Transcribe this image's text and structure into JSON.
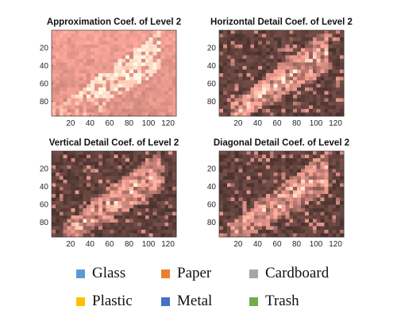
{
  "chart_data": [
    {
      "type": "heatmap",
      "title": "Approximation Coef. of Level 2",
      "xticks": [
        20,
        40,
        60,
        80,
        100,
        120
      ],
      "yticks": [
        20,
        40,
        60,
        80
      ],
      "xlim": [
        0.5,
        128.5
      ],
      "ylim": [
        0.5,
        96.5
      ],
      "colormap": "pink",
      "content": "approximation"
    },
    {
      "type": "heatmap",
      "title": "Horizontal Detail Coef. of Level 2",
      "xticks": [
        20,
        40,
        60,
        80,
        100,
        120
      ],
      "yticks": [
        20,
        40,
        60,
        80
      ],
      "xlim": [
        0.5,
        128.5
      ],
      "ylim": [
        0.5,
        96.5
      ],
      "colormap": "pink",
      "content": "detail"
    },
    {
      "type": "heatmap",
      "title": "Vertical Detail Coef. of Level 2",
      "xticks": [
        20,
        40,
        60,
        80,
        100,
        120
      ],
      "yticks": [
        20,
        40,
        60,
        80
      ],
      "xlim": [
        0.5,
        128.5
      ],
      "ylim": [
        0.5,
        96.5
      ],
      "colormap": "pink",
      "content": "detail"
    },
    {
      "type": "heatmap",
      "title": "Diagonal Detail Coef. of Level 2",
      "xticks": [
        20,
        40,
        60,
        80,
        100,
        120
      ],
      "yticks": [
        20,
        40,
        60,
        80
      ],
      "xlim": [
        0.5,
        128.5
      ],
      "ylim": [
        0.5,
        96.5
      ],
      "colormap": "pink",
      "content": "detail"
    }
  ],
  "legend": {
    "placement": "bottom",
    "items": [
      {
        "label": "Glass",
        "color": "#5B9BD5"
      },
      {
        "label": "Paper",
        "color": "#ED7D31"
      },
      {
        "label": "Cardboard",
        "color": "#A5A5A5"
      },
      {
        "label": "Plastic",
        "color": "#FFC000"
      },
      {
        "label": "Metal",
        "color": "#4472C4"
      },
      {
        "label": "Trash",
        "color": "#70AD47"
      }
    ]
  }
}
